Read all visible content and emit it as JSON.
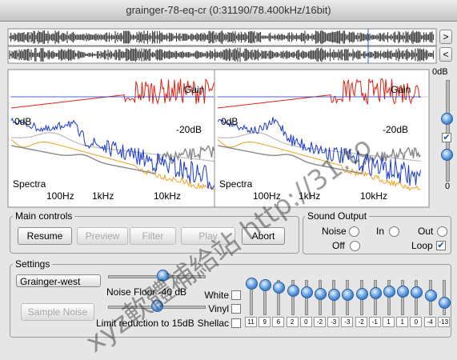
{
  "window": {
    "title": "grainger-78-eq-cr (0:31190/78.400kHz/16bit)"
  },
  "waveform": {
    "buttons": [
      ">",
      "<"
    ]
  },
  "spectrum": {
    "gain": "Gain",
    "zero": "0dB",
    "minus20": "-20dB",
    "spectra": "Spectra",
    "freq_labels": [
      "100Hz",
      "1kHz",
      "10kHz"
    ]
  },
  "side": {
    "top": "0dB",
    "bottom": "0"
  },
  "main_controls": {
    "title": "Main controls",
    "buttons": [
      {
        "label": "Resume",
        "enabled": true
      },
      {
        "label": "Preview",
        "enabled": false
      },
      {
        "label": "Filter",
        "enabled": false
      },
      {
        "label": "Play",
        "enabled": false
      },
      {
        "label": "Abort",
        "enabled": true
      }
    ]
  },
  "sound_output": {
    "title": "Sound Output",
    "options": [
      {
        "label": "Noise",
        "checked": false
      },
      {
        "label": "In",
        "checked": false
      },
      {
        "label": "Out",
        "checked": false
      },
      {
        "label": "Off",
        "checked": false
      },
      {
        "label": "Loop",
        "checked": true
      }
    ]
  },
  "settings": {
    "title": "Settings",
    "preset": "Grainger-west",
    "noise_floor": "Noise Floor -40 dB",
    "limit": "Limit reduction to 15dB",
    "sample_noise": "Sample Noise",
    "filters": [
      {
        "label": "White",
        "checked": false
      },
      {
        "label": "Vinyl",
        "checked": false
      },
      {
        "label": "Shellac",
        "checked": false
      }
    ],
    "eq": [
      11,
      9,
      6,
      2,
      0,
      -2,
      -3,
      -3,
      -2,
      -1,
      1,
      1,
      0,
      -4,
      -13
    ]
  },
  "watermark": "xyz軟體補給站 http://31.to"
}
